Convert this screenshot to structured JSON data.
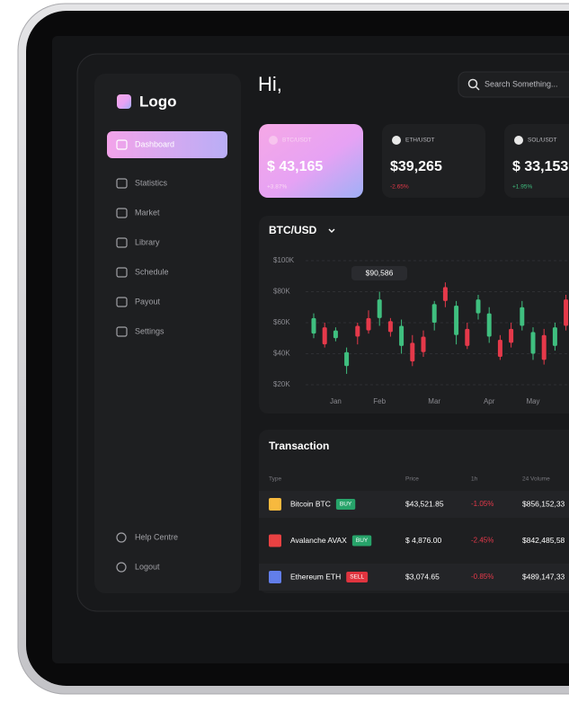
{
  "sidebar": {
    "logo": "Logo",
    "menu": [
      "Dashboard",
      "Statistics",
      "Market",
      "Library",
      "Schedule",
      "Payout",
      "Settings"
    ],
    "footer": [
      "Help Centre",
      "Logout"
    ]
  },
  "header": {
    "greeting": "Hi,",
    "search_placeholder": "Search Something..."
  },
  "cards": [
    {
      "pair": "BTC/USDT",
      "price": "$ 43,165",
      "change": "+3.87%"
    },
    {
      "pair": "ETH/USDT",
      "price": "$39,265",
      "change": "-2.65%"
    },
    {
      "pair": "SOL/USDT",
      "price": "$ 33,153",
      "change": "+1.95%"
    }
  ],
  "chart_data": {
    "type": "candlestick",
    "title": "BTC/USD",
    "categories": [
      null,
      null,
      "Jan",
      null,
      null,
      null,
      "Feb",
      null,
      null,
      null,
      null,
      "Mar",
      null,
      null,
      null,
      null,
      "Apr",
      null,
      null,
      null,
      "May",
      null,
      null,
      null
    ],
    "open": [
      53000,
      57000,
      50000,
      32000,
      58000,
      63000,
      63000,
      61000,
      45000,
      47000,
      51000,
      60000,
      83000,
      52000,
      56000,
      66000,
      51000,
      49000,
      56000,
      58000,
      40000,
      52000,
      45000,
      75000
    ],
    "high": [
      66000,
      60000,
      57000,
      44000,
      60000,
      68000,
      80000,
      63000,
      62000,
      52000,
      55000,
      74000,
      86000,
      74000,
      60000,
      78000,
      70000,
      52000,
      60000,
      74000,
      57000,
      56000,
      60000,
      78000
    ],
    "low": [
      50000,
      44000,
      48000,
      27000,
      46000,
      53000,
      58000,
      51000,
      40000,
      32000,
      38000,
      55000,
      70000,
      46000,
      43000,
      62000,
      47000,
      36000,
      44000,
      55000,
      36000,
      33000,
      42000,
      55000
    ],
    "close": [
      63000,
      46000,
      55000,
      41000,
      51000,
      55000,
      75000,
      54000,
      58000,
      35000,
      41000,
      72000,
      74000,
      71000,
      45000,
      75000,
      66000,
      38000,
      47000,
      70000,
      54000,
      36000,
      57000,
      58000
    ],
    "up_color": "#3fbf7f",
    "down_color": "#e5394a",
    "ylim": [
      20000,
      100000
    ],
    "yticks": [
      {
        "value": 20000,
        "label": "$20K"
      },
      {
        "value": 40000,
        "label": "$40K"
      },
      {
        "value": 60000,
        "label": "$60K"
      },
      {
        "value": 80000,
        "label": "$80K"
      },
      {
        "value": 100000,
        "label": "$100K"
      }
    ],
    "grid": true,
    "annotations": [
      "$90,586"
    ]
  },
  "transactions": {
    "title": "Transaction",
    "columns": [
      "Type",
      "Price",
      "1h",
      "24 Volume"
    ],
    "rows": [
      {
        "name": "Bitcoin BTC",
        "action": "BUY",
        "price": "$43,521.85",
        "change": "-1.05%",
        "volume": "$856,152,33"
      },
      {
        "name": "Avalanche AVAX",
        "action": "BUY",
        "price": "$ 4,876.00",
        "change": "-2.45%",
        "volume": "$842,485,58"
      },
      {
        "name": "Ethereum ETH",
        "action": "SELL",
        "price": "$3,074.65",
        "change": "-0.85%",
        "volume": "$489,147,33"
      }
    ]
  }
}
